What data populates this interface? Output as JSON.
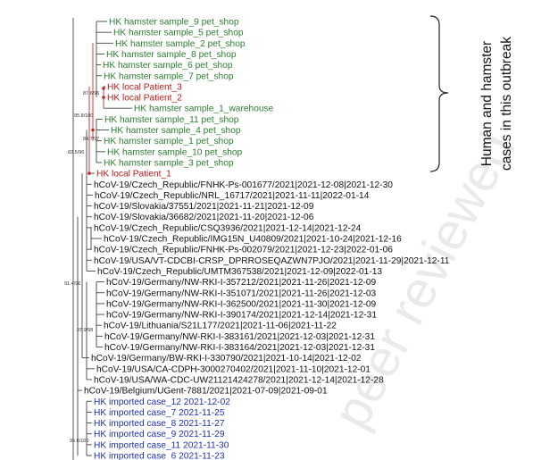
{
  "colors": {
    "hamster": "#2e7d32",
    "patient": "#b71c1c",
    "reference": "#111111",
    "imported": "#1f2fb3",
    "branch": "#444444",
    "node_dot": "#c62828"
  },
  "annotation": {
    "line1": "Human and hamster",
    "line2": "cases in this outbreak"
  },
  "watermark": "peer reviewed",
  "support_values": {
    "node_a": "87.6/96",
    "node_b": "95.8/100",
    "node_c": "84.7/97",
    "node_d": "82.5/96",
    "node_e": "91.4/96",
    "node_f": "97.9/98",
    "node_g": "95.6/100"
  },
  "tips": [
    {
      "label": "HK hamster sample_9 pet_shop",
      "group": "hamster"
    },
    {
      "label": "HK hamster sample_5 pet_shop",
      "group": "hamster"
    },
    {
      "label": "HK hamster sample_2 pet_shop",
      "group": "hamster"
    },
    {
      "label": "HK hamster sample_8 pet_shop",
      "group": "hamster"
    },
    {
      "label": "HK hamster sample_6 pet_shop",
      "group": "hamster"
    },
    {
      "label": "HK hamster sample_7 pet_shop",
      "group": "hamster"
    },
    {
      "label": "HK local Patient_3",
      "group": "patient"
    },
    {
      "label": "HK local Patient_2",
      "group": "patient"
    },
    {
      "label": "HK hamster sample_1_warehouse",
      "group": "hamster"
    },
    {
      "label": "HK hamster sample_11 pet_shop",
      "group": "hamster"
    },
    {
      "label": "HK hamster sample_4 pet_shop",
      "group": "hamster"
    },
    {
      "label": "HK hamster sample_1 pet_shop",
      "group": "hamster"
    },
    {
      "label": "HK hamster sample_10 pet_shop",
      "group": "hamster"
    },
    {
      "label": "HK hamster sample_3 pet_shop",
      "group": "hamster"
    },
    {
      "label": "HK local Patient_1",
      "group": "patient"
    },
    {
      "label": "hCoV-19/Czech_Republic/FNHK-Ps-001677/2021|2021-12-08|2021-12-30",
      "group": "reference"
    },
    {
      "label": "hCoV-19/Czech_Republic/NRL_16717/2021|2021-11-11|2022-01-14",
      "group": "reference"
    },
    {
      "label": "hCoV-19/Slovakia/37551/2021|2021-11-21|2021-12-09",
      "group": "reference"
    },
    {
      "label": "hCoV-19/Slovakia/36682/2021|2021-11-20|2021-12-06",
      "group": "reference"
    },
    {
      "label": "hCoV-19/Czech_Republic/CSQ3936/2021|2021-12-14|2021-12-24",
      "group": "reference"
    },
    {
      "label": "hCoV-19/Czech_Republic/IMG15N_U40809/2021|2021-10-24|2021-12-16",
      "group": "reference"
    },
    {
      "label": "hCoV-19/Czech_Republic/FNHK-Ps-002079/2021|2021-12-23|2022-01-06",
      "group": "reference"
    },
    {
      "label": "hCoV-19/USA/VT-CDCBI-CRSP_DPRROSEQAZWN7PJO/2021|2021-11-29|2021-12-11",
      "group": "reference"
    },
    {
      "label": "hCoV-19/Czech_Republic/UMTM367538/2021|2021-12-09|2022-01-13",
      "group": "reference"
    },
    {
      "label": "hCoV-19/Germany/NW-RKI-I-357212/2021|2021-11-26|2021-12-09",
      "group": "reference"
    },
    {
      "label": "hCoV-19/Germany/NW-RKI-I-351071/2021|2021-11-26|2021-12-03",
      "group": "reference"
    },
    {
      "label": "hCoV-19/Germany/NW-RKI-I-362500/2021|2021-11-30|2021-12-09",
      "group": "reference"
    },
    {
      "label": "hCoV-19/Germany/NW-RKI-I-390174/2021|2021-12-14|2021-12-31",
      "group": "reference"
    },
    {
      "label": "hCoV-19/Lithuania/S21L177/2021|2021-11-06|2021-11-22",
      "group": "reference"
    },
    {
      "label": "hCoV-19/Germany/NW-RKI-I-383161/2021|2021-12-03|2021-12-31",
      "group": "reference"
    },
    {
      "label": "hCoV-19/Germany/NW-RKI-I-383164/2021|2021-12-03|2021-12-31",
      "group": "reference"
    },
    {
      "label": "hCoV-19/Germany/BW-RKI-I-330790/2021|2021-10-14|2021-12-02",
      "group": "reference"
    },
    {
      "label": "hCoV-19/USA/CA-CDPH-3000270402/2021|2021-11-10|2021-12-01",
      "group": "reference"
    },
    {
      "label": "hCoV-19/USA/WA-CDC-UW21121424278/2021|2021-12-14|2021-12-28",
      "group": "reference"
    },
    {
      "label": "hCoV-19/Belgium/UGent-7881/2021|2021-07-09|2021-09-01",
      "group": "reference"
    },
    {
      "label": "HK imported case_12 2021-12-02",
      "group": "imported"
    },
    {
      "label": "HK imported case_7 2021-11-25",
      "group": "imported"
    },
    {
      "label": "HK imported case_8 2021-11-27",
      "group": "imported"
    },
    {
      "label": "HK imported case_9 2021-11-29",
      "group": "imported"
    },
    {
      "label": "HK imported case_11 2021-11-30",
      "group": "imported"
    },
    {
      "label": "HK imported case_6 2021-11-23",
      "group": "imported"
    }
  ]
}
